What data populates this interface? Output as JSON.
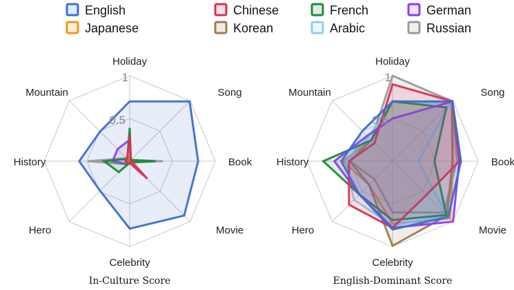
{
  "chart_data": [
    {
      "type": "radar",
      "title": "In-Culture Score",
      "axes": [
        "Holiday",
        "Song",
        "Book",
        "Movie",
        "Celebrity",
        "Hero",
        "History",
        "Mountain"
      ],
      "rlim": [
        0,
        1
      ],
      "rticks": [
        "0.5",
        "1"
      ],
      "series": [
        {
          "name": "English",
          "color": "#3b6fd0",
          "values": [
            0.7,
            0.99,
            0.8,
            0.9,
            0.79,
            0.49,
            0.59,
            0.49
          ]
        },
        {
          "name": "Japanese",
          "color": "#f0961e",
          "values": [
            0.05,
            0.02,
            0.02,
            0.02,
            0.02,
            0.03,
            0.05,
            0.05
          ]
        },
        {
          "name": "Chinese",
          "color": "#d9304f",
          "values": [
            0.3,
            0.02,
            0.02,
            0.29,
            0.02,
            0.03,
            0.05,
            0.04
          ]
        },
        {
          "name": "Korean",
          "color": "#a07a50",
          "values": [
            0.02,
            0.01,
            0.01,
            0.01,
            0.01,
            0.01,
            0.02,
            0.02
          ]
        },
        {
          "name": "French",
          "color": "#1e8a3a",
          "values": [
            0.39,
            0.02,
            0.3,
            0.02,
            0.02,
            0.18,
            0.3,
            0.04
          ]
        },
        {
          "name": "Arabic",
          "color": "#8fd0ee",
          "values": [
            0.02,
            0.01,
            0.01,
            0.01,
            0.01,
            0.01,
            0.02,
            0.02
          ]
        },
        {
          "name": "German",
          "color": "#8a3ff0",
          "values": [
            0.25,
            0.02,
            0.02,
            0.02,
            0.02,
            0.05,
            0.2,
            0.2
          ]
        },
        {
          "name": "Russian",
          "color": "#9a9a9a",
          "values": [
            0.05,
            0.02,
            0.39,
            0.02,
            0.02,
            0.05,
            0.49,
            0.05
          ]
        }
      ]
    },
    {
      "type": "radar",
      "title": "English-Dominant Score",
      "axes": [
        "Holiday",
        "Song",
        "Book",
        "Movie",
        "Celebrity",
        "Hero",
        "History",
        "Mountain"
      ],
      "rlim": [
        0,
        1
      ],
      "rticks": [
        "0.5",
        "1"
      ],
      "series": [
        {
          "name": "English",
          "color": "#3b6fd0",
          "values": [
            0.7,
            0.99,
            0.8,
            0.92,
            0.8,
            0.55,
            0.6,
            0.5
          ]
        },
        {
          "name": "Japanese",
          "color": "#f0961e",
          "values": [
            0.7,
            0.98,
            0.71,
            0.95,
            0.73,
            0.39,
            0.58,
            0.35
          ]
        },
        {
          "name": "Chinese",
          "color": "#d9304f",
          "values": [
            0.9,
            0.99,
            0.78,
            0.56,
            0.78,
            0.72,
            0.51,
            0.3
          ]
        },
        {
          "name": "Korean",
          "color": "#a07a50",
          "values": [
            0.7,
            0.98,
            0.7,
            0.9,
            0.99,
            0.39,
            0.5,
            0.35
          ]
        },
        {
          "name": "French",
          "color": "#1e8a3a",
          "values": [
            0.7,
            0.89,
            0.49,
            0.89,
            0.69,
            0.55,
            0.81,
            0.35
          ]
        },
        {
          "name": "Arabic",
          "color": "#8fd0ee",
          "values": [
            0.7,
            0.95,
            0.3,
            0.9,
            0.75,
            0.64,
            0.55,
            0.4
          ]
        },
        {
          "name": "German",
          "color": "#8a3ff0",
          "values": [
            0.5,
            0.99,
            0.78,
            1.0,
            0.78,
            0.55,
            0.68,
            0.42
          ]
        },
        {
          "name": "Russian",
          "color": "#9a9a9a",
          "values": [
            1.0,
            0.99,
            0.75,
            0.85,
            0.6,
            0.3,
            0.5,
            0.35
          ]
        }
      ]
    }
  ],
  "legend": {
    "position": "top"
  }
}
